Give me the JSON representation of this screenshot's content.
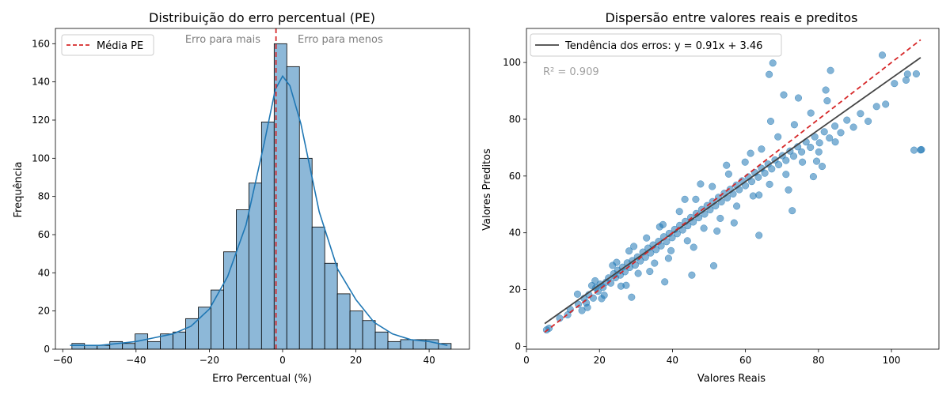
{
  "chart_data": [
    {
      "type": "bar",
      "title": "Distribuição do erro percentual (PE)",
      "xlabel": "Erro Percentual (%)",
      "ylabel": "Frequência",
      "xlim": [
        -62,
        51
      ],
      "ylim": [
        0,
        168
      ],
      "xticks": [
        -60,
        -40,
        -20,
        0,
        20,
        40
      ],
      "yticks": [
        0,
        20,
        40,
        60,
        80,
        100,
        120,
        140,
        160
      ],
      "bin_width": 3.45,
      "bin_start": -57.5,
      "values": [
        3,
        2,
        2,
        4,
        3,
        8,
        4,
        8,
        9,
        16,
        22,
        31,
        51,
        73,
        87,
        119,
        160,
        148,
        100,
        64,
        45,
        29,
        20,
        15,
        9,
        4,
        5,
        5,
        5,
        3
      ],
      "kde": {
        "x": [
          -58,
          -50,
          -45,
          -40,
          -35,
          -30,
          -25,
          -20,
          -15,
          -10,
          -5,
          -2,
          0,
          2,
          5,
          10,
          15,
          20,
          25,
          30,
          35,
          40,
          45
        ],
        "y": [
          2,
          2,
          3,
          4,
          6,
          8,
          12,
          21,
          38,
          65,
          108,
          136,
          143,
          138,
          118,
          72,
          42,
          26,
          14,
          8,
          5,
          4,
          2
        ]
      },
      "mean_line": {
        "x": -1.8,
        "label": "Média PE",
        "color": "#d62728"
      },
      "annotations": [
        "Erro para mais",
        "Erro para menos"
      ],
      "colors": {
        "bar": "#8db8d8",
        "kde": "#1f77b4"
      }
    },
    {
      "type": "scatter",
      "title": "Dispersão entre valores reais e preditos",
      "xlabel": "Valores Reais",
      "ylabel": "Valores Preditos",
      "xlim": [
        0,
        113
      ],
      "ylim": [
        -1,
        112
      ],
      "xticks": [
        0,
        20,
        40,
        60,
        80,
        100
      ],
      "yticks": [
        0,
        20,
        40,
        60,
        80,
        100
      ],
      "trend": {
        "slope": 0.91,
        "intercept": 3.46,
        "label": "Tendência dos erros: y = 0.91x + 3.46",
        "x_range": [
          5,
          108
        ],
        "color": "#444444"
      },
      "identity": {
        "x_range": [
          5,
          108
        ],
        "color": "#d62728"
      },
      "r2_label": "R² = 0.909",
      "points": {
        "x": [
          5.5,
          6.2,
          9.1,
          11.3,
          12.0,
          14.2,
          15.8,
          16.4,
          17.1,
          18.3,
          19.0,
          19.6,
          20.2,
          21.0,
          21.8,
          22.5,
          23.1,
          23.9,
          24.4,
          25.0,
          25.7,
          26.3,
          27.0,
          27.6,
          28.3,
          29.0,
          29.8,
          30.4,
          31.2,
          31.9,
          32.6,
          33.3,
          34.0,
          34.7,
          35.5,
          36.2,
          36.9,
          37.6,
          38.4,
          39.1,
          39.9,
          40.6,
          41.3,
          42.0,
          42.8,
          43.5,
          44.2,
          45.0,
          45.7,
          46.5,
          47.2,
          48.0,
          48.8,
          49.5,
          50.3,
          51.0,
          51.8,
          52.6,
          53.4,
          54.2,
          55.0,
          55.8,
          56.6,
          57.5,
          58.3,
          59.1,
          60.0,
          60.8,
          61.7,
          62.6,
          63.5,
          64.4,
          65.3,
          66.2,
          67.2,
          68.1,
          69.1,
          70.1,
          71.1,
          72.2,
          73.2,
          74.3,
          75.4,
          76.6,
          77.8,
          79.0,
          80.3,
          81.6,
          83.0,
          84.5,
          86.1,
          87.8,
          89.6,
          91.5,
          93.6,
          95.9,
          98.4,
          100.8,
          104.4,
          106.2,
          108.0,
          14.0,
          16.7,
          18.8,
          21.3,
          23.6,
          25.9,
          28.1,
          30.6,
          32.9,
          35.1,
          37.4,
          39.6,
          41.9,
          44.1,
          46.4,
          48.6,
          50.9,
          53.1,
          55.4,
          57.6,
          59.9,
          62.1,
          64.4,
          66.6,
          68.9,
          71.1,
          73.4,
          75.6,
          77.9,
          80.1,
          82.4,
          84.6,
          15.2,
          17.9,
          20.6,
          24.7,
          27.3,
          29.4,
          33.8,
          36.5,
          38.9,
          43.4,
          45.8,
          47.7,
          52.2,
          54.8,
          56.9,
          61.4,
          63.7,
          66.9,
          71.8,
          74.5,
          78.6,
          83.3,
          97.5,
          104.0,
          108.2,
          106.8,
          63.7,
          51.3,
          37.9,
          45.3,
          28.8,
          67.5,
          72.8,
          70.5,
          82.0,
          66.5,
          79.5,
          81.0
        ],
        "y": [
          5.8,
          6.4,
          9.9,
          11.1,
          13.0,
          14.8,
          16.9,
          15.3,
          18.2,
          17.0,
          20.6,
          19.4,
          21.9,
          20.8,
          22.6,
          24.1,
          22.3,
          25.6,
          24.2,
          26.8,
          25.1,
          27.9,
          26.3,
          29.4,
          27.8,
          30.2,
          28.6,
          31.5,
          30.1,
          33.2,
          31.4,
          34.6,
          32.9,
          35.7,
          34.1,
          37.0,
          35.4,
          38.6,
          36.9,
          39.8,
          38.3,
          41.2,
          39.7,
          42.6,
          41.0,
          44.0,
          42.5,
          45.4,
          43.8,
          46.8,
          45.3,
          48.2,
          46.6,
          49.6,
          48.1,
          51.0,
          49.5,
          52.5,
          50.9,
          53.9,
          52.3,
          55.3,
          53.7,
          56.8,
          55.2,
          58.3,
          56.6,
          59.7,
          58.1,
          61.2,
          59.6,
          62.7,
          61.0,
          64.2,
          62.5,
          65.7,
          64.0,
          67.2,
          65.5,
          68.8,
          67.0,
          70.3,
          68.5,
          72.0,
          70.1,
          73.8,
          71.7,
          75.6,
          73.4,
          77.6,
          75.3,
          79.7,
          77.2,
          82.0,
          79.3,
          84.5,
          85.3,
          92.6,
          95.9,
          69.1,
          69.2,
          18.4,
          13.7,
          23.1,
          18.0,
          28.5,
          21.2,
          33.6,
          25.7,
          38.2,
          29.3,
          42.9,
          33.7,
          47.5,
          37.2,
          51.8,
          41.6,
          56.3,
          45.1,
          60.7,
          49.4,
          64.9,
          53.0,
          69.5,
          57.1,
          73.8,
          60.6,
          78.1,
          64.9,
          82.2,
          68.5,
          86.5,
          72.0,
          12.6,
          21.4,
          16.8,
          29.6,
          21.5,
          35.2,
          26.4,
          42.1,
          31.0,
          51.8,
          34.9,
          57.2,
          40.6,
          63.8,
          43.5,
          68.0,
          53.3,
          79.3,
          55.1,
          87.5,
          59.8,
          97.2,
          102.6,
          93.8,
          69.3,
          96.0,
          39.1,
          28.4,
          22.7,
          25.1,
          17.3,
          99.8,
          47.8,
          88.6,
          90.3,
          95.8,
          65.2,
          63.4
        ]
      },
      "colors": {
        "point": "#1f77b4"
      }
    }
  ]
}
